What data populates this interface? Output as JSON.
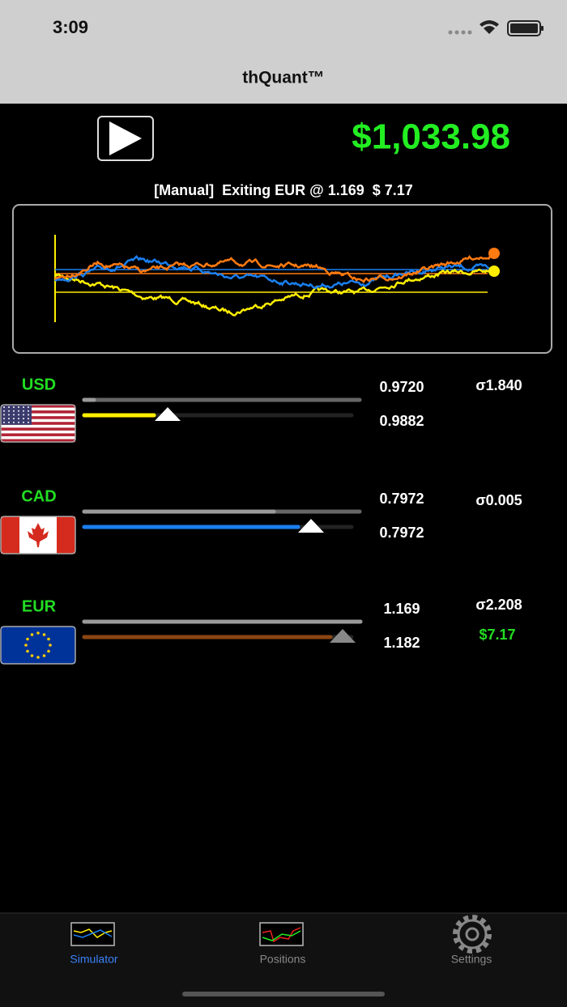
{
  "status_bar": {
    "time": "3:09"
  },
  "nav_bar": {
    "title": "thQuant™"
  },
  "header": {
    "balance": "$1,033.98",
    "status": "[Manual]  Exiting EUR @ 1.169  $ 7.17"
  },
  "currencies": [
    {
      "code": "USD",
      "value_top": "0.9720",
      "value_bottom": "0.9882",
      "sigma": "σ1.840"
    },
    {
      "code": "CAD",
      "value_top": "0.7972",
      "value_bottom": "0.7972",
      "sigma": "σ0.005"
    },
    {
      "code": "EUR",
      "value_top": "1.169",
      "value_bottom": "1.182",
      "sigma": "σ2.208",
      "pnl": "$7.17"
    }
  ],
  "tab_bar": {
    "tabs": [
      {
        "label": "Simulator"
      },
      {
        "label": "Positions"
      },
      {
        "label": "Settings"
      }
    ]
  }
}
